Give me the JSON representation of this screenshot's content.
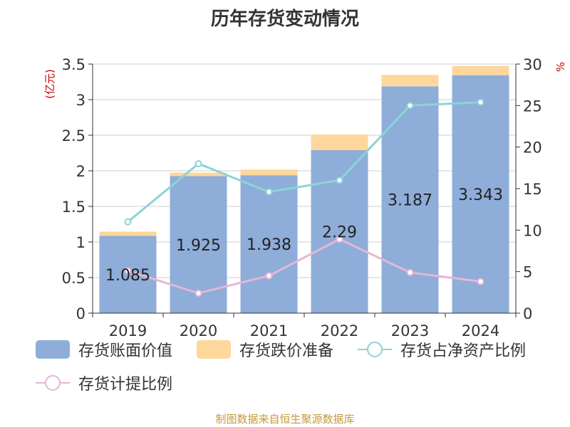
{
  "title": "历年存货变动情况",
  "source": "制图数据来自恒生聚源数据库",
  "chart_data": {
    "type": "bar",
    "categories": [
      "2019",
      "2020",
      "2021",
      "2022",
      "2023",
      "2024"
    ],
    "y_left": {
      "unit_label": "(亿元)",
      "range": [
        0,
        3.5
      ],
      "ticks": [
        "0",
        "0.5",
        "1",
        "1.5",
        "2",
        "2.5",
        "3",
        "3.5"
      ]
    },
    "y_right": {
      "unit_label": "%",
      "range": [
        0,
        30
      ],
      "ticks": [
        "0",
        "5",
        "10",
        "15",
        "20",
        "25",
        "30"
      ]
    },
    "series": [
      {
        "name": "存货账面价值",
        "type": "bar",
        "stack": "total",
        "axis": "left",
        "color": "#8eadd9",
        "values": [
          1.085,
          1.925,
          1.938,
          2.29,
          3.187,
          3.343
        ],
        "labels": [
          "1.085",
          "1.925",
          "1.938",
          "2.29",
          "3.187",
          "3.343"
        ]
      },
      {
        "name": "存货跌价准备",
        "type": "bar",
        "stack": "total",
        "axis": "left",
        "color": "#fdd79b",
        "values": [
          0.06,
          0.05,
          0.08,
          0.22,
          0.16,
          0.13
        ]
      },
      {
        "name": "存货占净资产比例",
        "type": "line",
        "axis": "right",
        "color": "#8bd4d6",
        "values": [
          11.0,
          18.0,
          14.6,
          16.0,
          25.0,
          25.4
        ]
      },
      {
        "name": "存货计提比例",
        "type": "line",
        "axis": "right",
        "color": "#e6b6d7",
        "values": [
          5.1,
          2.4,
          4.5,
          8.9,
          4.9,
          3.8
        ]
      }
    ],
    "grid": true,
    "legend_position": "bottom"
  }
}
